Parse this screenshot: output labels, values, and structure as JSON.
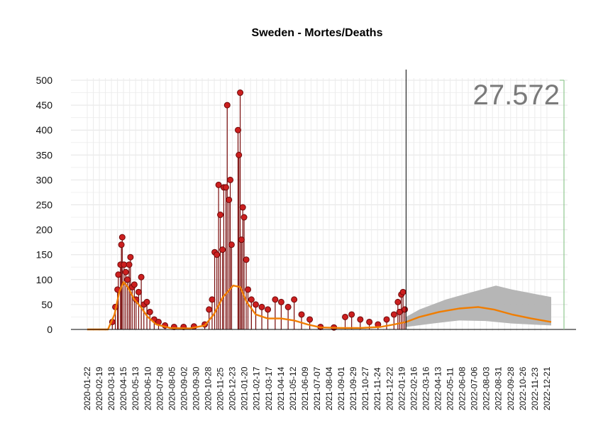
{
  "chart_data": {
    "type": "line",
    "title": "Sweden - Mortes/Deaths",
    "ylim": [
      0,
      500
    ],
    "yticks": [
      0,
      50,
      100,
      150,
      200,
      250,
      300,
      350,
      400,
      450,
      500
    ],
    "x_tick_labels": [
      "2020-01-22",
      "2020-02-19",
      "2020-03-18",
      "2020-04-15",
      "2020-05-13",
      "2020-06-10",
      "2020-07-08",
      "2020-08-05",
      "2020-09-02",
      "2020-09-30",
      "2020-10-28",
      "2020-11-25",
      "2020-12-23",
      "2021-01-20",
      "2021-02-17",
      "2021-03-17",
      "2021-04-14",
      "2021-05-12",
      "2021-06-09",
      "2021-07-07",
      "2021-08-04",
      "2021-09-01",
      "2021-09-29",
      "2021-10-27",
      "2021-11-24",
      "2021-12-22",
      "2022-01-19",
      "2022-02-16",
      "2022-03-16",
      "2022-04-13",
      "2022-05-11",
      "2022-06-08",
      "2022-07-06",
      "2022-08-03",
      "2022-08-31",
      "2022-09-28",
      "2022-10-26",
      "2022-11-23",
      "2022-12-21"
    ],
    "forecast_start": "2022-01-29",
    "annotation": "27.572",
    "grid": true,
    "series": [
      {
        "kind": "daily-deaths",
        "color": "#cc1f1f",
        "points": [
          [
            "2020-03-20",
            15
          ],
          [
            "2020-03-27",
            45
          ],
          [
            "2020-04-01",
            80
          ],
          [
            "2020-04-03",
            110
          ],
          [
            "2020-04-08",
            130
          ],
          [
            "2020-04-10",
            170
          ],
          [
            "2020-04-12",
            185
          ],
          [
            "2020-04-16",
            130
          ],
          [
            "2020-04-20",
            115
          ],
          [
            "2020-04-24",
            100
          ],
          [
            "2020-04-28",
            130
          ],
          [
            "2020-05-01",
            145
          ],
          [
            "2020-05-05",
            85
          ],
          [
            "2020-05-10",
            90
          ],
          [
            "2020-05-14",
            60
          ],
          [
            "2020-05-20",
            75
          ],
          [
            "2020-05-26",
            105
          ],
          [
            "2020-06-01",
            50
          ],
          [
            "2020-06-08",
            55
          ],
          [
            "2020-06-15",
            35
          ],
          [
            "2020-06-25",
            20
          ],
          [
            "2020-07-05",
            15
          ],
          [
            "2020-07-20",
            8
          ],
          [
            "2020-08-10",
            5
          ],
          [
            "2020-09-01",
            5
          ],
          [
            "2020-09-25",
            6
          ],
          [
            "2020-10-20",
            10
          ],
          [
            "2020-10-30",
            40
          ],
          [
            "2020-11-06",
            60
          ],
          [
            "2020-11-12",
            155
          ],
          [
            "2020-11-17",
            150
          ],
          [
            "2020-11-21",
            290
          ],
          [
            "2020-11-25",
            230
          ],
          [
            "2020-11-30",
            160
          ],
          [
            "2020-12-03",
            285
          ],
          [
            "2020-12-08",
            285
          ],
          [
            "2020-12-11",
            450
          ],
          [
            "2020-12-15",
            260
          ],
          [
            "2020-12-18",
            300
          ],
          [
            "2020-12-21",
            170
          ],
          [
            "2021-01-05",
            400
          ],
          [
            "2021-01-07",
            350
          ],
          [
            "2021-01-10",
            475
          ],
          [
            "2021-01-13",
            180
          ],
          [
            "2021-01-16",
            245
          ],
          [
            "2021-01-19",
            225
          ],
          [
            "2021-01-24",
            140
          ],
          [
            "2021-01-28",
            80
          ],
          [
            "2021-02-05",
            60
          ],
          [
            "2021-02-15",
            50
          ],
          [
            "2021-03-01",
            45
          ],
          [
            "2021-03-15",
            40
          ],
          [
            "2021-04-01",
            60
          ],
          [
            "2021-04-15",
            55
          ],
          [
            "2021-05-01",
            45
          ],
          [
            "2021-05-15",
            60
          ],
          [
            "2021-06-01",
            30
          ],
          [
            "2021-06-20",
            20
          ],
          [
            "2021-07-15",
            5
          ],
          [
            "2021-08-15",
            4
          ],
          [
            "2021-09-10",
            25
          ],
          [
            "2021-09-25",
            30
          ],
          [
            "2021-10-15",
            20
          ],
          [
            "2021-11-05",
            15
          ],
          [
            "2021-11-25",
            10
          ],
          [
            "2021-12-15",
            20
          ],
          [
            "2022-01-01",
            30
          ],
          [
            "2022-01-10",
            55
          ],
          [
            "2022-01-14",
            35
          ],
          [
            "2022-01-18",
            70
          ],
          [
            "2022-01-22",
            75
          ],
          [
            "2022-01-26",
            40
          ]
        ]
      },
      {
        "kind": "smoothed-trend",
        "color": "#f07d00",
        "points": [
          [
            "2020-01-22",
            0
          ],
          [
            "2020-03-10",
            0
          ],
          [
            "2020-03-25",
            30
          ],
          [
            "2020-04-05",
            75
          ],
          [
            "2020-04-15",
            95
          ],
          [
            "2020-04-25",
            85
          ],
          [
            "2020-05-10",
            60
          ],
          [
            "2020-05-25",
            45
          ],
          [
            "2020-06-10",
            25
          ],
          [
            "2020-06-30",
            10
          ],
          [
            "2020-08-01",
            3
          ],
          [
            "2020-09-15",
            2
          ],
          [
            "2020-10-20",
            8
          ],
          [
            "2020-11-10",
            30
          ],
          [
            "2020-12-01",
            65
          ],
          [
            "2020-12-25",
            88
          ],
          [
            "2021-01-10",
            85
          ],
          [
            "2021-01-25",
            55
          ],
          [
            "2021-02-15",
            30
          ],
          [
            "2021-03-15",
            22
          ],
          [
            "2021-04-15",
            22
          ],
          [
            "2021-05-15",
            18
          ],
          [
            "2021-06-15",
            10
          ],
          [
            "2021-07-15",
            4
          ],
          [
            "2021-09-01",
            3
          ],
          [
            "2021-10-15",
            3
          ],
          [
            "2021-12-01",
            5
          ],
          [
            "2022-01-01",
            10
          ],
          [
            "2022-01-29",
            15
          ],
          [
            "2022-03-01",
            25
          ],
          [
            "2022-04-15",
            35
          ],
          [
            "2022-06-01",
            42
          ],
          [
            "2022-07-15",
            45
          ],
          [
            "2022-08-20",
            40
          ],
          [
            "2022-10-01",
            30
          ],
          [
            "2022-11-15",
            22
          ],
          [
            "2022-12-31",
            15
          ]
        ]
      },
      {
        "kind": "forecast-interval",
        "color": "#b2b2b2",
        "lower": [
          [
            "2022-01-29",
            5
          ],
          [
            "2022-04-01",
            12
          ],
          [
            "2022-06-01",
            18
          ],
          [
            "2022-08-01",
            17
          ],
          [
            "2022-10-01",
            12
          ],
          [
            "2022-12-31",
            8
          ]
        ],
        "upper": [
          [
            "2022-01-29",
            25
          ],
          [
            "2022-03-01",
            40
          ],
          [
            "2022-05-01",
            60
          ],
          [
            "2022-07-01",
            75
          ],
          [
            "2022-08-25",
            88
          ],
          [
            "2022-10-01",
            80
          ],
          [
            "2022-12-31",
            65
          ]
        ]
      }
    ]
  }
}
